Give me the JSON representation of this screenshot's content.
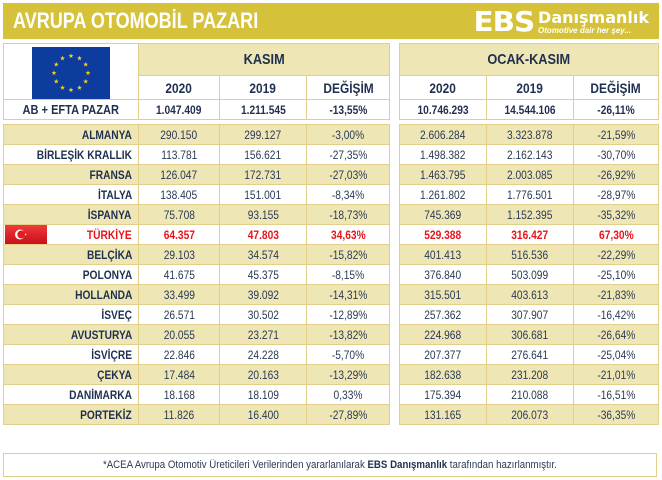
{
  "header": {
    "title": "AVRUPA OTOMOBİL PAZARI",
    "logo": {
      "brand": "EBS",
      "name": "Danışmanlık",
      "tagline": "Otomotive dair her şey..."
    }
  },
  "colors": {
    "title_bg": "#d6c23a",
    "cream": "#efe6b6",
    "border": "#e2d08a",
    "highlight": "#e8141b",
    "text": "#2b3a55"
  },
  "groups": [
    {
      "label": "KASIM",
      "columns": [
        "2020",
        "2019",
        "DEĞİŞİM"
      ]
    },
    {
      "label": "OCAK-KASIM",
      "columns": [
        "2020",
        "2019",
        "DEĞİŞİM"
      ]
    }
  ],
  "total": {
    "label": "AB + EFTA PAZAR",
    "kasim": [
      "1.047.409",
      "1.211.545",
      "-13,55%"
    ],
    "ocak_kasim": [
      "10.746.293",
      "14.544.106",
      "-26,11%"
    ]
  },
  "rows": [
    {
      "country": "ALMANYA",
      "kasim": [
        "290.150",
        "299.127",
        "-3,00%"
      ],
      "ocak_kasim": [
        "2.606.284",
        "3.323.878",
        "-21,59%"
      ]
    },
    {
      "country": "BİRLEŞİK KRALLIK",
      "kasim": [
        "113.781",
        "156.621",
        "-27,35%"
      ],
      "ocak_kasim": [
        "1.498.382",
        "2.162.143",
        "-30,70%"
      ]
    },
    {
      "country": "FRANSA",
      "kasim": [
        "126.047",
        "172.731",
        "-27,03%"
      ],
      "ocak_kasim": [
        "1.463.795",
        "2.003.085",
        "-26,92%"
      ]
    },
    {
      "country": "İTALYA",
      "kasim": [
        "138.405",
        "151.001",
        "-8,34%"
      ],
      "ocak_kasim": [
        "1.261.802",
        "1.776.501",
        "-28,97%"
      ]
    },
    {
      "country": "İSPANYA",
      "kasim": [
        "75.708",
        "93.155",
        "-18,73%"
      ],
      "ocak_kasim": [
        "745.369",
        "1.152.395",
        "-35,32%"
      ]
    },
    {
      "country": "TÜRKİYE",
      "kasim": [
        "64.357",
        "47.803",
        "34,63%"
      ],
      "ocak_kasim": [
        "529.388",
        "316.427",
        "67,30%"
      ],
      "highlight": true
    },
    {
      "country": "BELÇİKA",
      "kasim": [
        "29.103",
        "34.574",
        "-15,82%"
      ],
      "ocak_kasim": [
        "401.413",
        "516.536",
        "-22,29%"
      ]
    },
    {
      "country": "POLONYA",
      "kasim": [
        "41.675",
        "45.375",
        "-8,15%"
      ],
      "ocak_kasim": [
        "376.840",
        "503.099",
        "-25,10%"
      ]
    },
    {
      "country": "HOLLANDA",
      "kasim": [
        "33.499",
        "39.092",
        "-14,31%"
      ],
      "ocak_kasim": [
        "315.501",
        "403.613",
        "-21,83%"
      ]
    },
    {
      "country": "İSVEÇ",
      "kasim": [
        "26.571",
        "30.502",
        "-12,89%"
      ],
      "ocak_kasim": [
        "257.362",
        "307.907",
        "-16,42%"
      ]
    },
    {
      "country": "AVUSTURYA",
      "kasim": [
        "20.055",
        "23.271",
        "-13,82%"
      ],
      "ocak_kasim": [
        "224.968",
        "306.681",
        "-26,64%"
      ]
    },
    {
      "country": "İSVİÇRE",
      "kasim": [
        "22.846",
        "24.228",
        "-5,70%"
      ],
      "ocak_kasim": [
        "207.377",
        "276.641",
        "-25,04%"
      ]
    },
    {
      "country": "ÇEKYA",
      "kasim": [
        "17.484",
        "20.163",
        "-13,29%"
      ],
      "ocak_kasim": [
        "182.638",
        "231.208",
        "-21,01%"
      ]
    },
    {
      "country": "DANİMARKA",
      "kasim": [
        "18.168",
        "18.109",
        "0,33%"
      ],
      "ocak_kasim": [
        "175.394",
        "210.088",
        "-16,51%"
      ]
    },
    {
      "country": "PORTEKİZ",
      "kasim": [
        "11.826",
        "16.400",
        "-27,89%"
      ],
      "ocak_kasim": [
        "131.165",
        "206.073",
        "-36,35%"
      ]
    }
  ],
  "footnote": {
    "before": "*ACEA Avrupa Otomotiv Üreticileri Verilerinden yararlanılarak ",
    "bold": "EBS Danışmanlık",
    "after": " tarafından hazırlanmıştır."
  }
}
